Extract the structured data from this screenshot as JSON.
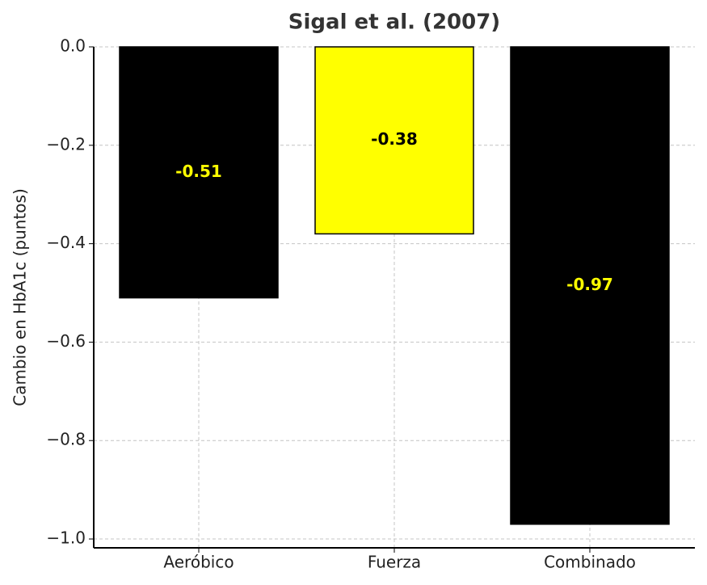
{
  "chart_data": {
    "type": "bar",
    "title": "Sigal et al. (2007)",
    "ylabel": "Cambio en HbA1c (puntos)",
    "categories": [
      "Aeróbico",
      "Fuerza",
      "Combinado"
    ],
    "values": [
      -0.51,
      -0.38,
      -0.97
    ],
    "colors": [
      "#000000",
      "#ffff00",
      "#000000"
    ],
    "label_colors": [
      "#ffff00",
      "#000000",
      "#ffff00"
    ],
    "ylim": [
      -1.018,
      0
    ],
    "yticks": [
      {
        "value": 0,
        "label": "0.0"
      },
      {
        "value": -0.2,
        "label": "−0.2"
      },
      {
        "value": -0.4,
        "label": "−0.4"
      },
      {
        "value": -0.6,
        "label": "−0.6"
      },
      {
        "value": -0.8,
        "label": "−0.8"
      },
      {
        "value": -1.0,
        "label": "−1.0"
      }
    ],
    "grid": true
  }
}
